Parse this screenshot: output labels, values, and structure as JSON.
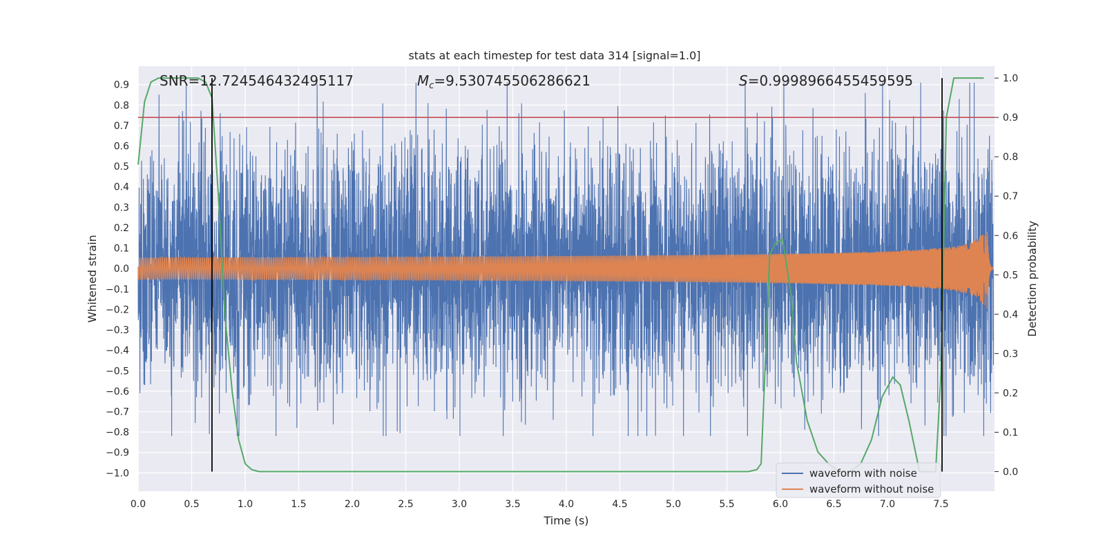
{
  "chart_data": {
    "type": "line",
    "title": "stats at each timestep for test data 314 [signal=1.0]",
    "xlabel": "Time (s)",
    "ylabel": "Whitened strain",
    "y2label": "Detection probability",
    "xlim": [
      0.0,
      8.0
    ],
    "ylim": [
      -1.09,
      0.99
    ],
    "y2lim": [
      -0.05,
      1.03
    ],
    "xticks": [
      "0.0",
      "0.5",
      "1.0",
      "1.5",
      "2.0",
      "2.5",
      "3.0",
      "3.5",
      "4.0",
      "4.5",
      "5.0",
      "5.5",
      "6.0",
      "6.5",
      "7.0",
      "7.5"
    ],
    "yticks": [
      "0.9",
      "0.8",
      "0.7",
      "0.6",
      "0.5",
      "0.4",
      "0.3",
      "0.2",
      "0.1",
      "0.0",
      "−0.1",
      "−0.2",
      "−0.3",
      "−0.4",
      "−0.5",
      "−0.6",
      "−0.7",
      "−0.8",
      "−0.9",
      "−1.0"
    ],
    "y2ticks": [
      "1.0",
      "0.9",
      "0.8",
      "0.7",
      "0.6",
      "0.5",
      "0.4",
      "0.3",
      "0.2",
      "0.1",
      "0.0"
    ],
    "annotations": {
      "snr": "SNR=12.724546432495117",
      "mc_value": "=9.530745506286621",
      "s_value": "=0.9998966455459595"
    },
    "legend_position": "lower-right",
    "threshold_y2": 0.9,
    "vertical_lines_x": [
      0.69,
      7.51
    ],
    "series": [
      {
        "name": "waveform with noise",
        "color": "#4c72b0",
        "noise_amplitude": 0.3
      },
      {
        "name": "waveform without noise",
        "color": "#dd8452",
        "peak_amplitude": 0.3,
        "merger_time": 7.93
      },
      {
        "color": "#55a868",
        "axis": "y2",
        "x": [
          0.0,
          0.06,
          0.12,
          0.19,
          0.25,
          0.31,
          0.38,
          0.44,
          0.5,
          0.56,
          0.63,
          0.69,
          0.75,
          0.81,
          0.88,
          0.94,
          1.0,
          1.06,
          1.13,
          1.2,
          1.5,
          2.0,
          3.0,
          4.0,
          5.0,
          5.5,
          5.7,
          5.78,
          5.82,
          5.9,
          5.95,
          6.02,
          6.1,
          6.15,
          6.25,
          6.35,
          6.45,
          6.55,
          6.65,
          6.75,
          6.85,
          6.95,
          7.05,
          7.12,
          7.2,
          7.3,
          7.4,
          7.45,
          7.5,
          7.55,
          7.62,
          7.75,
          7.9
        ],
        "y": [
          0.78,
          0.94,
          0.99,
          1.0,
          1.0,
          1.0,
          1.0,
          1.0,
          1.0,
          1.0,
          0.99,
          0.95,
          0.7,
          0.4,
          0.2,
          0.08,
          0.02,
          0.005,
          0.0,
          0.0,
          0.0,
          0.0,
          0.0,
          0.0,
          0.0,
          0.0,
          0.0,
          0.005,
          0.02,
          0.55,
          0.58,
          0.59,
          0.45,
          0.28,
          0.13,
          0.05,
          0.02,
          0.0,
          0.0,
          0.02,
          0.08,
          0.19,
          0.24,
          0.22,
          0.13,
          0.0,
          0.0,
          0.0,
          0.25,
          0.9,
          1.0,
          1.0,
          1.0
        ]
      }
    ]
  }
}
